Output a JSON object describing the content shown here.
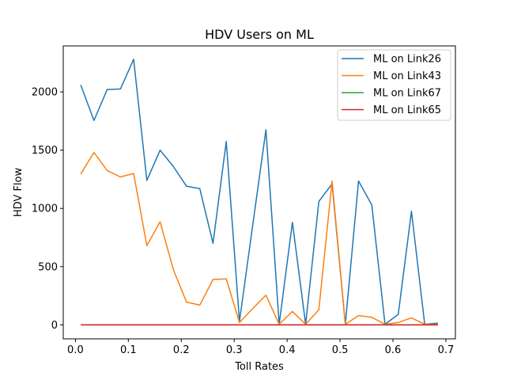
{
  "chart_data": {
    "type": "line",
    "title": "HDV Users on ML",
    "xlabel": "Toll Rates",
    "ylabel": "HDV Flow",
    "xlim": [
      -0.023,
      0.718
    ],
    "ylim": [
      -120,
      2395
    ],
    "xticks": [
      0.0,
      0.1,
      0.2,
      0.3,
      0.4,
      0.5,
      0.6,
      0.7
    ],
    "xtick_labels": [
      "0.0",
      "0.1",
      "0.2",
      "0.3",
      "0.4",
      "0.5",
      "0.6",
      "0.7"
    ],
    "yticks": [
      0,
      500,
      1000,
      1500,
      2000
    ],
    "ytick_labels": [
      "0",
      "500",
      "1000",
      "1500",
      "2000"
    ],
    "grid": false,
    "legend_position": "upper right",
    "x": [
      0.01,
      0.035,
      0.06,
      0.085,
      0.11,
      0.135,
      0.16,
      0.185,
      0.21,
      0.235,
      0.26,
      0.285,
      0.31,
      0.335,
      0.36,
      0.385,
      0.41,
      0.435,
      0.46,
      0.485,
      0.51,
      0.535,
      0.56,
      0.585,
      0.61,
      0.635,
      0.66,
      0.685
    ],
    "series": [
      {
        "name": "ML on Link26",
        "color": "#1f77b4",
        "values": [
          2060,
          1755,
          2020,
          2025,
          2280,
          1240,
          1500,
          1360,
          1190,
          1170,
          700,
          1575,
          30,
          855,
          1675,
          5,
          880,
          5,
          1060,
          1210,
          5,
          1235,
          1030,
          5,
          90,
          975,
          5,
          15
        ]
      },
      {
        "name": "ML on Link43",
        "color": "#ff7f0e",
        "values": [
          1295,
          1480,
          1325,
          1270,
          1300,
          680,
          885,
          475,
          195,
          170,
          390,
          395,
          20,
          140,
          255,
          5,
          115,
          5,
          130,
          1235,
          5,
          80,
          65,
          5,
          20,
          60,
          5,
          5
        ]
      },
      {
        "name": "ML on Link67",
        "color": "#2ca02c",
        "values": [
          0,
          0,
          0,
          0,
          0,
          0,
          0,
          0,
          0,
          0,
          0,
          0,
          0,
          0,
          0,
          0,
          0,
          0,
          0,
          0,
          0,
          0,
          0,
          0,
          0,
          0,
          0,
          0
        ]
      },
      {
        "name": "ML on Link65",
        "color": "#d62728",
        "values": [
          0,
          0,
          0,
          0,
          0,
          0,
          0,
          0,
          0,
          0,
          0,
          0,
          0,
          0,
          0,
          0,
          0,
          0,
          0,
          0,
          0,
          0,
          0,
          0,
          0,
          0,
          0,
          0
        ]
      }
    ]
  }
}
